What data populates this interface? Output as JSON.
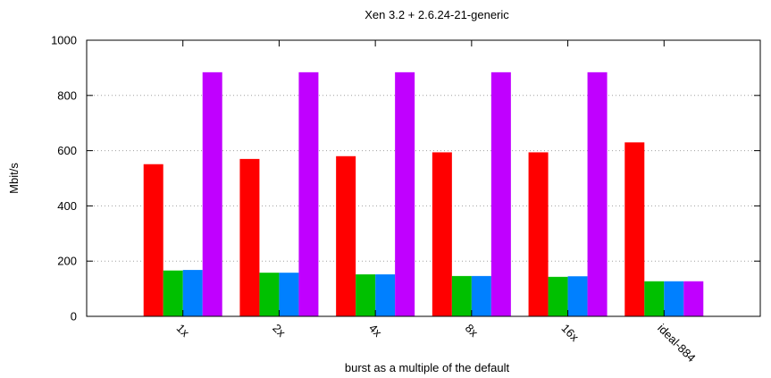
{
  "chart_data": {
    "type": "bar",
    "title": "Xen 3.2 + 2.6.24-21-generic",
    "xlabel": "burst as a multiple of the default",
    "ylabel": "Mbit/s",
    "ylim": [
      0,
      1000
    ],
    "yticks": [
      0,
      200,
      400,
      600,
      800,
      1000
    ],
    "grid": true,
    "legend": "none",
    "categories": [
      "1x",
      "2x",
      "4x",
      "8x",
      "16x",
      "ideal-884"
    ],
    "series": [
      {
        "color": "#ff0000",
        "values": [
          551,
          570,
          580,
          594,
          594,
          630
        ]
      },
      {
        "color": "#00c000",
        "values": [
          166,
          158,
          152,
          146,
          143,
          127
        ]
      },
      {
        "color": "#0080ff",
        "values": [
          168,
          158,
          152,
          146,
          145,
          127
        ]
      },
      {
        "color": "#c000ff",
        "values": [
          884,
          884,
          884,
          884,
          884,
          127
        ]
      }
    ]
  }
}
